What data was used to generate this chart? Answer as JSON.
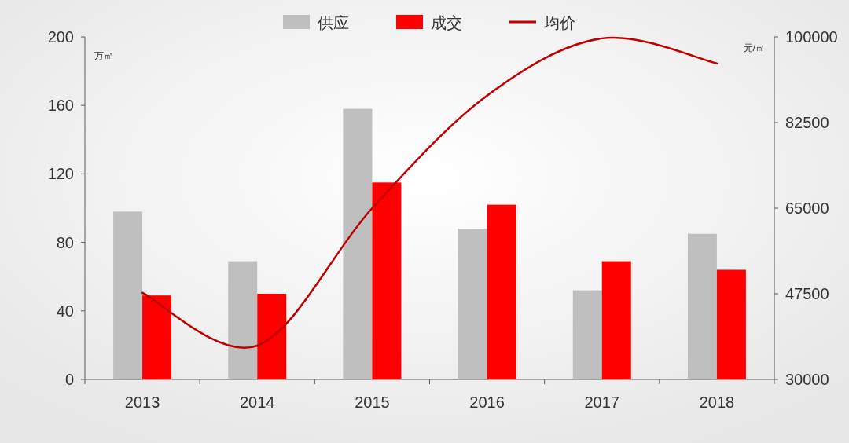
{
  "chart_data": {
    "type": "bar",
    "categories": [
      "2013",
      "2014",
      "2015",
      "2016",
      "2017",
      "2018"
    ],
    "series": [
      {
        "name": "供应",
        "color": "#bfbfbf",
        "values": [
          98,
          69,
          158,
          88,
          52,
          85
        ]
      },
      {
        "name": "成交",
        "color": "#ff0000",
        "values": [
          49,
          50,
          115,
          102,
          69,
          64
        ]
      },
      {
        "name": "均价",
        "type": "line",
        "axis": "y2",
        "color": "#c00000",
        "values": [
          47700,
          36900,
          65000,
          88000,
          99700,
          94600
        ]
      }
    ],
    "ylim": [
      0,
      200
    ],
    "yticks": [
      0,
      40,
      80,
      120,
      160,
      200
    ],
    "y2lim": [
      30000,
      100000
    ],
    "y2ticks": [
      30000,
      47500,
      65000,
      82500,
      100000
    ],
    "annotations": [
      "万㎡",
      "元/㎡"
    ],
    "legend": "top",
    "grid": false,
    "marker": "none"
  }
}
